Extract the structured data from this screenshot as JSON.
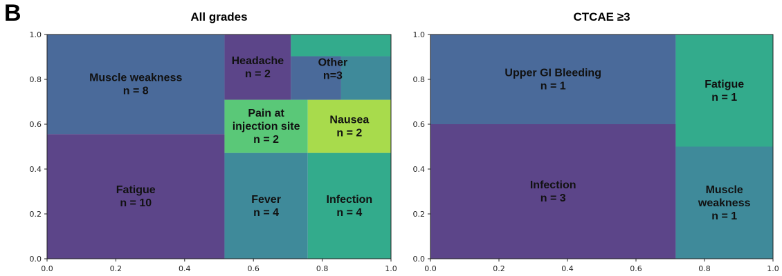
{
  "panel_label": "B",
  "chart_data": [
    {
      "type": "treemap",
      "title": "All grades",
      "xlim": [
        0,
        1
      ],
      "ylim": [
        0,
        1
      ],
      "xticks": [
        "0.0",
        "0.2",
        "0.4",
        "0.6",
        "0.8",
        "1.0"
      ],
      "yticks": [
        "0.0",
        "0.2",
        "0.4",
        "0.6",
        "0.8",
        "1.0"
      ],
      "rects": [
        {
          "name": "Fatigue",
          "label": [
            "Fatigue",
            "n = 10"
          ],
          "n": 10,
          "x0": 0.0,
          "x1": 0.516,
          "y0": 0.0,
          "y1": 0.556,
          "color": "#5c4589"
        },
        {
          "name": "Muscle weakness",
          "label": [
            "Muscle weakness",
            "n = 8"
          ],
          "n": 8,
          "x0": 0.0,
          "x1": 0.516,
          "y0": 0.556,
          "y1": 1.0,
          "color": "#4a6a9a"
        },
        {
          "name": "Fever",
          "label": [
            "Fever",
            "n = 4"
          ],
          "n": 4,
          "x0": 0.516,
          "x1": 0.758,
          "y0": 0.0,
          "y1": 0.472,
          "color": "#3f8a9a"
        },
        {
          "name": "Infection",
          "label": [
            "Infection",
            "n = 4"
          ],
          "n": 4,
          "x0": 0.758,
          "x1": 1.0,
          "y0": 0.0,
          "y1": 0.472,
          "color": "#33ab8c"
        },
        {
          "name": "Pain at injection site",
          "label": [
            "Pain at",
            "injection site",
            "n = 2"
          ],
          "n": 2,
          "x0": 0.516,
          "x1": 0.758,
          "y0": 0.472,
          "y1": 0.709,
          "color": "#5ac878"
        },
        {
          "name": "Nausea",
          "label": [
            "Nausea",
            "n = 2"
          ],
          "n": 2,
          "x0": 0.758,
          "x1": 1.0,
          "y0": 0.472,
          "y1": 0.709,
          "color": "#a8db4c"
        },
        {
          "name": "Headache",
          "label": [
            "Headache",
            "n = 2"
          ],
          "n": 2,
          "x0": 0.516,
          "x1": 0.709,
          "y0": 0.709,
          "y1": 1.0,
          "color": "#5c4589"
        },
        {
          "name": "Other 1",
          "label": [],
          "x0": 0.709,
          "x1": 1.0,
          "y0": 0.903,
          "y1": 1.0,
          "color": "#33ab8c"
        },
        {
          "name": "Other 2",
          "label": [],
          "x0": 0.709,
          "x1": 0.855,
          "y0": 0.709,
          "y1": 0.903,
          "color": "#4a6a9a"
        },
        {
          "name": "Other 3",
          "label": [],
          "x0": 0.855,
          "x1": 1.0,
          "y0": 0.709,
          "y1": 0.903,
          "color": "#3f8a9a"
        }
      ],
      "annotations": [
        {
          "label": [
            "Other",
            "n=3"
          ],
          "x": 0.855,
          "y": 0.84
        }
      ]
    },
    {
      "type": "treemap",
      "title": "CTCAE ≥3",
      "xlim": [
        0,
        1
      ],
      "ylim": [
        0,
        1
      ],
      "xticks": [
        "0.0",
        "0.2",
        "0.4",
        "0.6",
        "0.8",
        "1.0"
      ],
      "yticks": [
        "0.0",
        "0.2",
        "0.4",
        "0.6",
        "0.8",
        "1.0"
      ],
      "rects": [
        {
          "name": "Infection",
          "label": [
            "Infection",
            "n = 3"
          ],
          "n": 3,
          "x0": 0.0,
          "x1": 0.716,
          "y0": 0.0,
          "y1": 0.6,
          "color": "#5c4589"
        },
        {
          "name": "Upper GI Bleeding",
          "label": [
            "Upper GI Bleeding",
            "n = 1"
          ],
          "n": 1,
          "x0": 0.0,
          "x1": 0.716,
          "y0": 0.6,
          "y1": 1.0,
          "color": "#4a6a9a"
        },
        {
          "name": "Muscle weakness",
          "label": [
            "Muscle",
            "weakness",
            "n = 1"
          ],
          "n": 1,
          "x0": 0.716,
          "x1": 1.0,
          "y0": 0.0,
          "y1": 0.5,
          "color": "#3f8a9a"
        },
        {
          "name": "Fatigue",
          "label": [
            "Fatigue",
            "n = 1"
          ],
          "n": 1,
          "x0": 0.716,
          "x1": 1.0,
          "y0": 0.5,
          "y1": 1.0,
          "color": "#33ab8c"
        }
      ],
      "annotations": []
    }
  ]
}
